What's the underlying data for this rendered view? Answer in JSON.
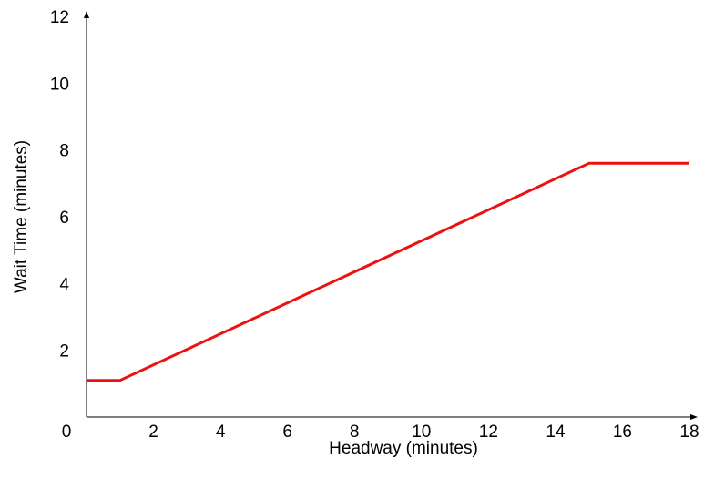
{
  "chart_data": {
    "type": "line",
    "title": "",
    "xlabel": "Headway (minutes)",
    "ylabel": "Wait Time (minutes)",
    "xlim": [
      0,
      18
    ],
    "ylim": [
      0,
      12
    ],
    "x_ticks": [
      2,
      4,
      6,
      8,
      10,
      12,
      14,
      16,
      18
    ],
    "y_ticks": [
      2,
      4,
      6,
      8,
      10,
      12
    ],
    "origin_label": "0",
    "grid": false,
    "legend": "none",
    "series": [
      {
        "color": "#ee1111",
        "points": [
          {
            "x": 0,
            "y": 1.1
          },
          {
            "x": 1,
            "y": 1.1
          },
          {
            "x": 15,
            "y": 7.6
          },
          {
            "x": 18,
            "y": 7.6
          }
        ]
      }
    ]
  }
}
